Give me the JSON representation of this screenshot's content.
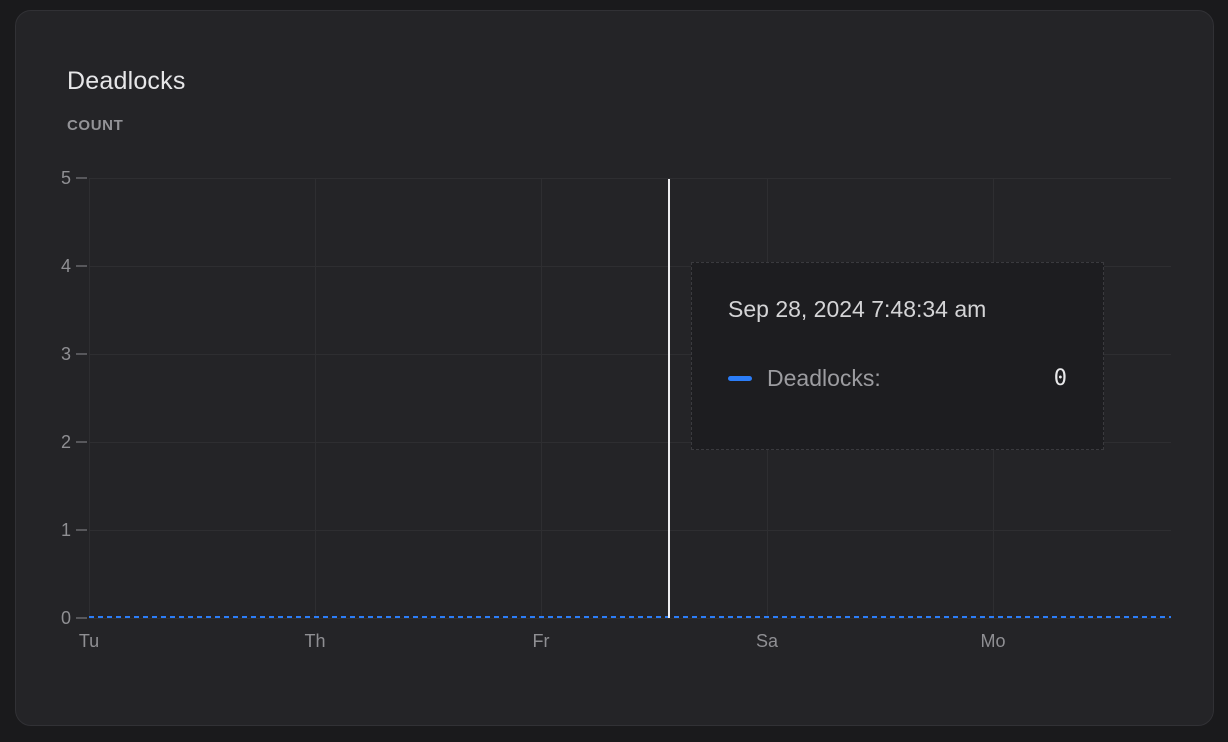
{
  "panel": {
    "title": "Deadlocks",
    "unit_label": "COUNT"
  },
  "chart_data": {
    "type": "line",
    "title": "Deadlocks",
    "xlabel": "",
    "ylabel": "COUNT",
    "ylim": [
      0,
      5
    ],
    "grid": true,
    "legend_position": "none",
    "y_tick_labels": [
      "5",
      "4",
      "3",
      "2",
      "1",
      "0"
    ],
    "x_tick_labels": [
      "Tu",
      "Th",
      "Fr",
      "Sa",
      "Mo"
    ],
    "series": [
      {
        "name": "Deadlocks",
        "color": "#2b7df8",
        "line_style": "dashed",
        "categories": [
          "Tu",
          "Th",
          "Fr",
          "Sa",
          "Mo"
        ],
        "values": [
          0,
          0,
          0,
          0,
          0
        ]
      }
    ],
    "hovered_point": {
      "timestamp": "Sep 28, 2024 7:48:34 am",
      "series": "Deadlocks",
      "value": 0
    }
  },
  "tooltip": {
    "timestamp": "Sep 28, 2024 7:48:34 am",
    "rows": [
      {
        "label": "Deadlocks:",
        "value": "0",
        "swatch_color": "#2b7df8"
      }
    ]
  },
  "colors": {
    "page_bg": "#1a1a1c",
    "panel_bg": "#242427",
    "panel_border": "#313135",
    "tooltip_bg": "#1d1d20",
    "tooltip_border": "#3a3a3e",
    "gridline": "#2e2e31",
    "axis_label": "#8f8f93",
    "title_text": "#e6e6e8",
    "accent_blue": "#2b7df8",
    "crosshair": "#ededef"
  }
}
